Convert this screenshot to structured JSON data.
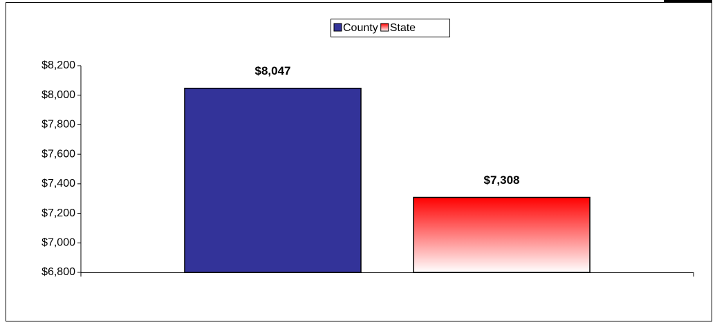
{
  "chart_data": {
    "type": "bar",
    "categories": [
      null
    ],
    "series": [
      {
        "name": "County",
        "color": "#333399",
        "gradient": false,
        "values": [
          8047
        ],
        "value_labels": [
          "$8,047"
        ]
      },
      {
        "name": "State",
        "color": "#ff0000",
        "gradient": true,
        "values": [
          7308
        ],
        "value_labels": [
          "$7,308"
        ]
      }
    ],
    "ylim": [
      6800,
      8200
    ],
    "yticks": [
      {
        "value": 6800,
        "label": "$6,800"
      },
      {
        "value": 7000,
        "label": "$7,000"
      },
      {
        "value": 7200,
        "label": "$7,200"
      },
      {
        "value": 7400,
        "label": "$7,400"
      },
      {
        "value": 7600,
        "label": "$7,600"
      },
      {
        "value": 7800,
        "label": "$7,800"
      },
      {
        "value": 8000,
        "label": "$8,000"
      },
      {
        "value": 8200,
        "label": "$8,200"
      }
    ],
    "grid": false,
    "legend": "top"
  }
}
